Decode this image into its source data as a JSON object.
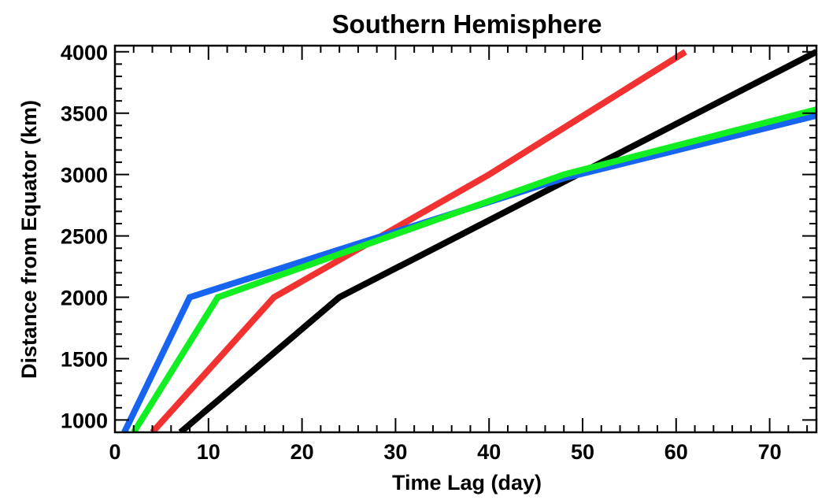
{
  "chart_data": {
    "type": "line",
    "title": "Southern Hemisphere",
    "xlabel": "Time Lag (day)",
    "ylabel": "Distance from Equator (km)",
    "xlim": [
      0,
      75
    ],
    "ylim": [
      900,
      4050
    ],
    "xticks": [
      0,
      10,
      20,
      30,
      40,
      50,
      60,
      70
    ],
    "yticks": [
      1000,
      1500,
      2000,
      2500,
      3000,
      3500,
      4000
    ],
    "grid": false,
    "series": [
      {
        "color": "#000000",
        "x": [
          7,
          24,
          75
        ],
        "y": [
          900,
          2000,
          4000
        ]
      },
      {
        "color": "#f23131",
        "x": [
          4,
          17,
          40,
          61
        ],
        "y": [
          900,
          2000,
          3000,
          4000
        ]
      },
      {
        "color": "#1764f0",
        "x": [
          1,
          8,
          48,
          75
        ],
        "y": [
          900,
          2000,
          2970,
          3480
        ]
      },
      {
        "color": "#11ee22",
        "x": [
          2,
          11,
          48,
          75
        ],
        "y": [
          900,
          2000,
          3000,
          3530
        ]
      }
    ]
  }
}
